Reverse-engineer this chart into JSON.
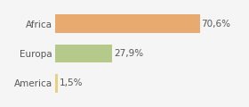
{
  "categories": [
    "America",
    "Europa",
    "Africa"
  ],
  "values": [
    1.5,
    27.9,
    70.6
  ],
  "labels": [
    "1,5%",
    "27,9%",
    "70,6%"
  ],
  "bar_colors": [
    "#e8d080",
    "#b5c98a",
    "#e8aa6e"
  ],
  "background_color": "#f5f5f5",
  "xlim": [
    0,
    80
  ],
  "bar_height": 0.62,
  "label_fontsize": 7.5,
  "tick_fontsize": 7.5,
  "figsize": [
    2.8,
    1.2
  ],
  "dpi": 100
}
